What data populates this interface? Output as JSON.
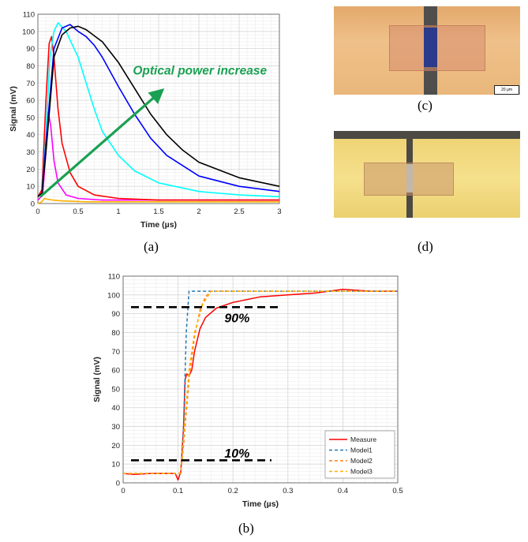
{
  "captions": {
    "a": "(a)",
    "b": "(b)",
    "c": "(c)",
    "d": "(d)"
  },
  "photos": {
    "c": {
      "scale_label": "20 μm",
      "pad_color": "#e9b77a",
      "gap_color": "#53483d",
      "channel_color": "#2b3a8a"
    },
    "d": {
      "pad_color": "#f0d679",
      "gap_color": "#44423a"
    }
  },
  "chart_data": [
    {
      "type": "line",
      "panel": "(a)",
      "xlabel": "Time (µs)",
      "ylabel": "Signal (mV)",
      "xlim": [
        0,
        3
      ],
      "ylim": [
        0,
        110
      ],
      "xticks": [
        0,
        0.5,
        1,
        1.5,
        2,
        2.5,
        3
      ],
      "xtick_labels": [
        "0",
        "0.5",
        "1",
        "1.5",
        "2",
        "2.5",
        "3"
      ],
      "yticks": [
        0,
        10,
        20,
        30,
        40,
        50,
        60,
        70,
        80,
        90,
        100,
        110
      ],
      "ytick_labels": [
        "0",
        "10",
        "20",
        "30",
        "40",
        "50",
        "60",
        "70",
        "80",
        "90",
        "100",
        "110"
      ],
      "grid": true,
      "annotation": "Optical power increase",
      "annotation_color": "#1aa052",
      "series": [
        {
          "color": "#ffb000",
          "x": [
            0,
            0.05,
            0.08,
            0.12,
            0.18,
            0.3,
            0.6,
            1.0,
            2.0,
            3.0
          ],
          "y": [
            0,
            1,
            3,
            2.5,
            2,
            1.5,
            1,
            1,
            1,
            1
          ]
        },
        {
          "color": "#ff00ff",
          "x": [
            0,
            0.06,
            0.1,
            0.13,
            0.16,
            0.2,
            0.25,
            0.35,
            0.5,
            0.8,
            1.5,
            3.0
          ],
          "y": [
            2,
            5,
            30,
            53,
            45,
            25,
            12,
            5,
            3,
            2,
            2,
            2
          ]
        },
        {
          "color": "#ff0000",
          "x": [
            0,
            0.05,
            0.1,
            0.14,
            0.17,
            0.2,
            0.25,
            0.3,
            0.4,
            0.5,
            0.7,
            1.0,
            1.5,
            2.0,
            3.0
          ],
          "y": [
            4,
            8,
            60,
            93,
            97,
            85,
            55,
            35,
            18,
            10,
            5,
            3,
            2,
            2,
            2
          ]
        },
        {
          "color": "#00ffff",
          "x": [
            0,
            0.05,
            0.1,
            0.15,
            0.2,
            0.25,
            0.35,
            0.5,
            0.6,
            0.7,
            0.8,
            1.0,
            1.2,
            1.5,
            2.0,
            2.5,
            3.0
          ],
          "y": [
            4,
            6,
            40,
            85,
            100,
            105,
            100,
            85,
            70,
            55,
            42,
            28,
            19,
            12,
            7,
            5,
            4
          ]
        },
        {
          "color": "#0000ff",
          "x": [
            0,
            0.05,
            0.1,
            0.2,
            0.3,
            0.4,
            0.5,
            0.6,
            0.7,
            0.8,
            1.0,
            1.2,
            1.4,
            1.6,
            2.0,
            2.5,
            3.0
          ],
          "y": [
            4,
            6,
            35,
            90,
            102,
            104,
            100,
            97,
            92,
            85,
            68,
            52,
            38,
            28,
            16,
            10,
            7
          ]
        },
        {
          "color": "#000000",
          "x": [
            0,
            0.05,
            0.1,
            0.2,
            0.3,
            0.4,
            0.5,
            0.6,
            0.8,
            1.0,
            1.2,
            1.4,
            1.6,
            1.8,
            2.0,
            2.5,
            3.0
          ],
          "y": [
            4,
            6,
            30,
            85,
            98,
            102,
            103,
            101,
            94,
            82,
            67,
            52,
            40,
            31,
            24,
            15,
            10
          ]
        }
      ]
    },
    {
      "type": "line",
      "panel": "(b)",
      "xlabel": "Time (µs)",
      "ylabel": "Signal (mV)",
      "xlim": [
        0,
        0.5
      ],
      "ylim": [
        0,
        110
      ],
      "xticks": [
        0,
        0.1,
        0.2,
        0.3,
        0.4,
        0.5
      ],
      "xtick_labels": [
        "0",
        "0.1",
        "0.2",
        "0.3",
        "0.4",
        "0.5"
      ],
      "yticks": [
        0,
        10,
        20,
        30,
        40,
        50,
        60,
        70,
        80,
        90,
        100,
        110
      ],
      "ytick_labels": [
        "0",
        "10",
        "20",
        "30",
        "40",
        "50",
        "60",
        "70",
        "80",
        "90",
        "100",
        "110"
      ],
      "grid": true,
      "legend_position": "bottom-right",
      "annotations": [
        {
          "text": "90%",
          "x": 0.17,
          "y": 88
        },
        {
          "text": "10%",
          "x": 0.17,
          "y": 16
        }
      ],
      "threshold_lines": [
        {
          "y": 93.5,
          "x0": 0,
          "x1": 0.285
        },
        {
          "y": 12,
          "x0": 0,
          "x1": 0.27
        }
      ],
      "series": [
        {
          "name": "Measure",
          "color": "#ff0000",
          "dash": "solid",
          "x": [
            0,
            0.02,
            0.05,
            0.08,
            0.095,
            0.1,
            0.105,
            0.11,
            0.113,
            0.116,
            0.12,
            0.125,
            0.13,
            0.14,
            0.15,
            0.17,
            0.2,
            0.25,
            0.3,
            0.35,
            0.4,
            0.45,
            0.5
          ],
          "y": [
            5,
            4.5,
            5,
            5,
            5,
            1.5,
            6,
            30,
            55,
            58,
            57,
            60,
            70,
            82,
            88,
            93,
            96,
            99,
            100,
            101,
            103,
            102,
            102
          ]
        },
        {
          "name": "Model1",
          "color": "#1f77b4",
          "dash": "dashed",
          "x": [
            0,
            0.105,
            0.11,
            0.115,
            0.12,
            0.5
          ],
          "y": [
            5,
            5,
            30,
            80,
            102,
            102
          ]
        },
        {
          "name": "Model2",
          "color": "#ff7f0e",
          "dash": "dashed",
          "x": [
            0,
            0.105,
            0.11,
            0.12,
            0.13,
            0.14,
            0.15,
            0.16,
            0.5
          ],
          "y": [
            5,
            5,
            20,
            55,
            78,
            92,
            99,
            102,
            102
          ]
        },
        {
          "name": "Model3",
          "color": "#ffb000",
          "dash": "dashed",
          "x": [
            0,
            0.105,
            0.11,
            0.12,
            0.13,
            0.145,
            0.16,
            0.5
          ],
          "y": [
            5,
            5,
            25,
            60,
            80,
            95,
            102,
            102
          ]
        }
      ]
    }
  ]
}
